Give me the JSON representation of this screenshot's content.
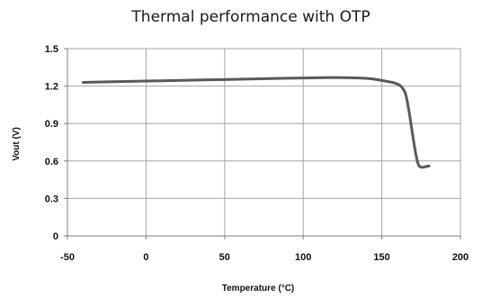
{
  "chart_data": {
    "type": "line",
    "title": "Thermal performance with OTP",
    "xlabel": "Temperature (°C)",
    "ylabel": "Vout (V)",
    "xlim": [
      -50,
      200
    ],
    "ylim": [
      0,
      1.5
    ],
    "xticks": [
      "-50",
      "0",
      "50",
      "100",
      "150",
      "200"
    ],
    "yticks": [
      "0",
      "0.3",
      "0.6",
      "0.9",
      "1.2",
      "1.5"
    ],
    "grid": true,
    "series": [
      {
        "color": "#595959",
        "x": [
          -40,
          -20,
          0,
          20,
          40,
          60,
          80,
          100,
          120,
          140,
          150,
          158,
          162,
          165,
          167,
          169,
          171,
          173,
          175,
          178,
          180
        ],
        "y": [
          1.23,
          1.235,
          1.24,
          1.245,
          1.25,
          1.255,
          1.26,
          1.265,
          1.268,
          1.262,
          1.245,
          1.225,
          1.2,
          1.14,
          1.02,
          0.86,
          0.7,
          0.58,
          0.55,
          0.555,
          0.56
        ]
      }
    ]
  }
}
